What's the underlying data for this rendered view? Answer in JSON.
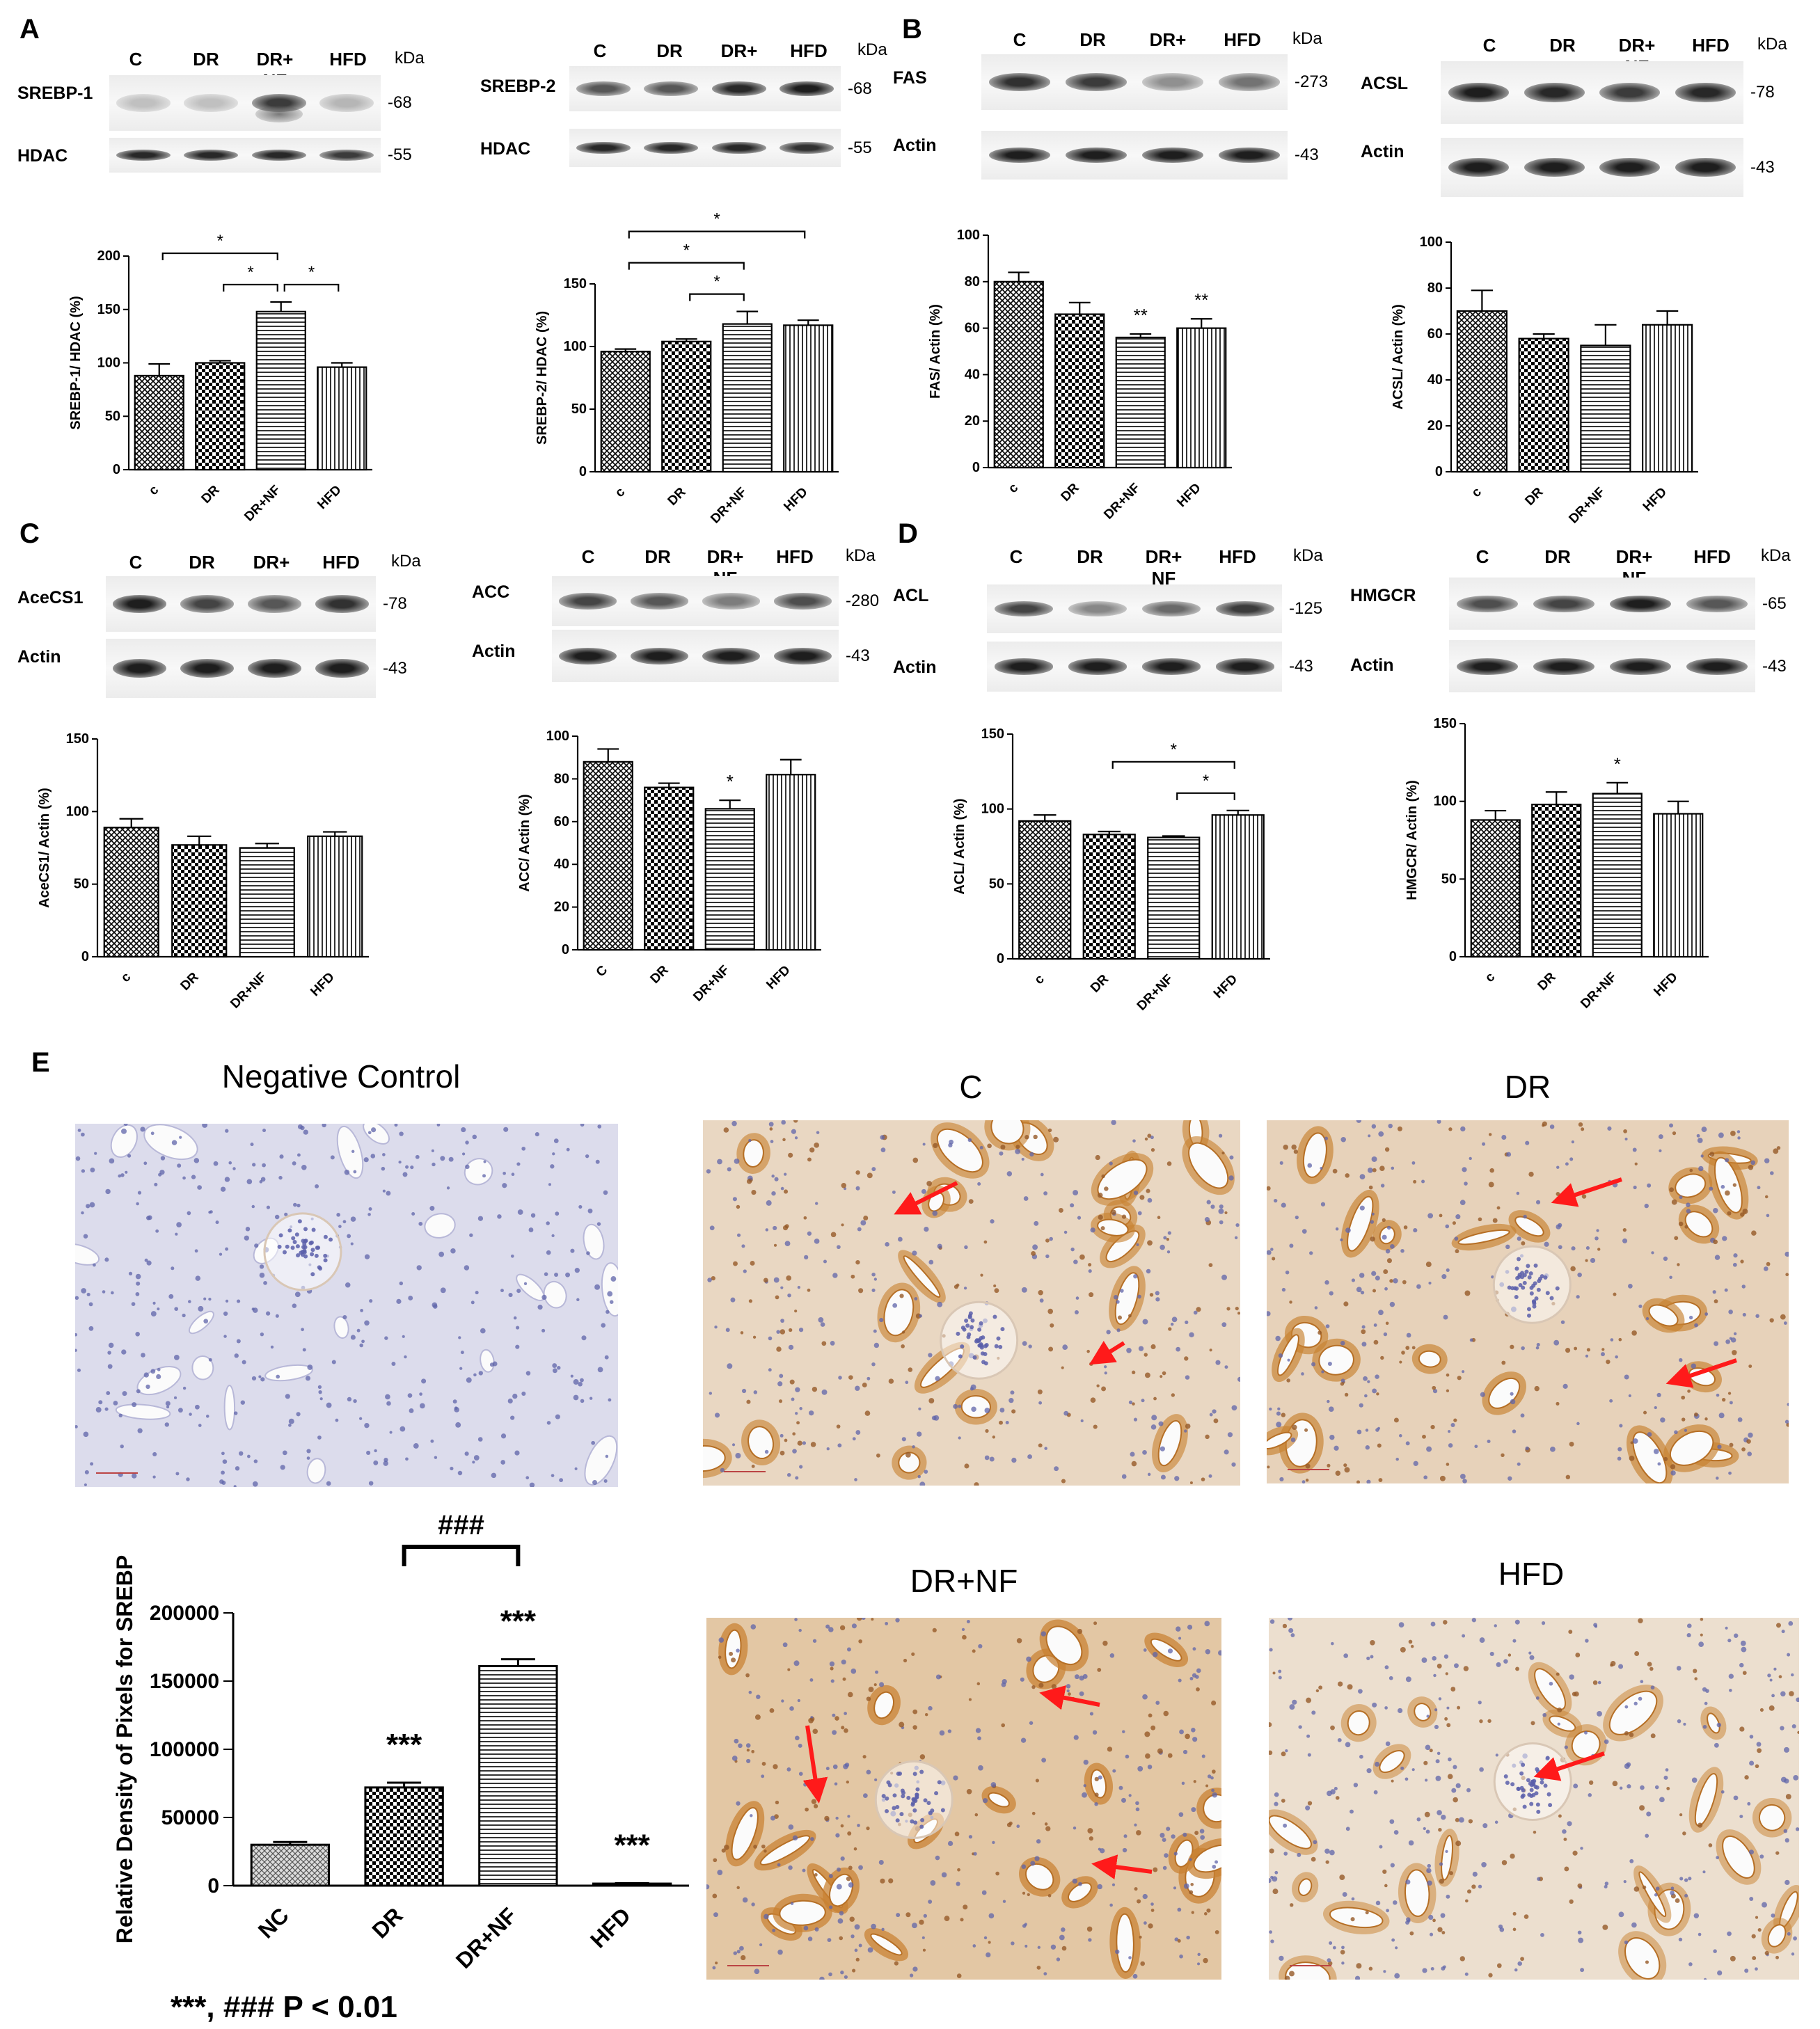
{
  "lanes": [
    "C",
    "DR",
    "DR+ NF",
    "HFD"
  ],
  "kda": "kDa",
  "panels": {
    "A": {
      "label": "A",
      "blot1": {
        "protein": "SREBP-1",
        "mw": "-68",
        "loading": "HDAC",
        "loading_mw": "-55"
      },
      "blot2": {
        "protein": "SREBP-2",
        "mw": "-68",
        "loading": "HDAC",
        "loading_mw": "-55"
      }
    },
    "B": {
      "label": "B",
      "blot1": {
        "protein": "FAS",
        "mw": "-273",
        "loading": "Actin",
        "loading_mw": "-43"
      },
      "blot2": {
        "protein": "ACSL",
        "mw": "-78",
        "loading": "Actin",
        "loading_mw": "-43"
      }
    },
    "C": {
      "label": "C",
      "blot1": {
        "protein": "AceCS1",
        "mw": "-78",
        "loading": "Actin",
        "loading_mw": "-43"
      },
      "blot2": {
        "protein": "ACC",
        "mw": "-280",
        "loading": "Actin",
        "loading_mw": "-43"
      }
    },
    "D": {
      "label": "D",
      "blot1": {
        "protein": "ACL",
        "mw": "-125",
        "loading": "Actin",
        "loading_mw": "-43"
      },
      "blot2": {
        "protein": "HMGCR",
        "mw": "-65",
        "loading": "Actin",
        "loading_mw": "-43"
      }
    },
    "E": {
      "label": "E",
      "micro_titles": [
        "Negative Control",
        "C",
        "DR",
        "DR+NF",
        "HFD"
      ],
      "pvalue": "***, ### P < 0.01"
    }
  },
  "colors": {
    "stain_brown": "#c8863a",
    "hematoxylin": "#8c8fc8",
    "arrow": "#ff1a1a"
  },
  "chart_data": [
    {
      "id": "srebp1",
      "type": "bar",
      "categories": [
        "c",
        "DR",
        "DR+NF",
        "HFD"
      ],
      "values": [
        88,
        100,
        148,
        96
      ],
      "errors": [
        11,
        2,
        9,
        4
      ],
      "ylabel": "SREBP-1/ HDAC (%)",
      "ylim": [
        0,
        200
      ],
      "yticks": [
        0,
        50,
        100,
        150,
        200
      ],
      "brackets": [
        {
          "from": 0,
          "to": 2,
          "label": "*"
        },
        {
          "from": 1,
          "to": 2,
          "label": "*"
        },
        {
          "from": 2,
          "to": 3,
          "label": "*"
        }
      ],
      "annotations": []
    },
    {
      "id": "srebp2",
      "type": "bar",
      "categories": [
        "c",
        "DR",
        "DR+NF",
        "HFD"
      ],
      "values": [
        96,
        104,
        118,
        117
      ],
      "errors": [
        2,
        2,
        10,
        4
      ],
      "ylabel": "SREBP-2/ HDAC (%)",
      "ylim": [
        0,
        150
      ],
      "yticks": [
        0,
        50,
        100,
        150
      ],
      "brackets": [
        {
          "from": 0,
          "to": 3,
          "label": "*"
        },
        {
          "from": 0,
          "to": 2,
          "label": "*"
        },
        {
          "from": 1,
          "to": 2,
          "label": "*"
        }
      ],
      "annotations": []
    },
    {
      "id": "fas",
      "type": "bar",
      "categories": [
        "c",
        "DR",
        "DR+NF",
        "HFD"
      ],
      "values": [
        80,
        66,
        56,
        60
      ],
      "errors": [
        4,
        5,
        1.5,
        4
      ],
      "ylabel": "FAS/ Actin (%)",
      "ylim": [
        0,
        100
      ],
      "yticks": [
        0,
        20,
        40,
        60,
        80,
        100
      ],
      "brackets": [],
      "annotations": [
        {
          "index": 2,
          "label": "**"
        },
        {
          "index": 3,
          "label": "**"
        }
      ]
    },
    {
      "id": "acsl",
      "type": "bar",
      "categories": [
        "c",
        "DR",
        "DR+NF",
        "HFD"
      ],
      "values": [
        70,
        58,
        55,
        64
      ],
      "errors": [
        9,
        2,
        9,
        6
      ],
      "ylabel": "ACSL/ Actin (%)",
      "ylim": [
        0,
        100
      ],
      "yticks": [
        0,
        20,
        40,
        60,
        80,
        100
      ],
      "brackets": [],
      "annotations": []
    },
    {
      "id": "acecs1",
      "type": "bar",
      "categories": [
        "c",
        "DR",
        "DR+NF",
        "HFD"
      ],
      "values": [
        89,
        77,
        75,
        83
      ],
      "errors": [
        6,
        6,
        3,
        3
      ],
      "ylabel": "AceCS1/ Actin (%)",
      "ylim": [
        0,
        150
      ],
      "yticks": [
        0,
        50,
        100,
        150
      ],
      "brackets": [],
      "annotations": []
    },
    {
      "id": "acc",
      "type": "bar",
      "categories": [
        "C",
        "DR",
        "DR+NF",
        "HFD"
      ],
      "values": [
        88,
        76,
        66,
        82
      ],
      "errors": [
        6,
        2,
        4,
        7
      ],
      "ylabel": "ACC/ Actin (%)",
      "ylim": [
        0,
        100
      ],
      "yticks": [
        0,
        20,
        40,
        60,
        80,
        100
      ],
      "brackets": [],
      "annotations": [
        {
          "index": 2,
          "label": "*"
        }
      ]
    },
    {
      "id": "acl",
      "type": "bar",
      "categories": [
        "c",
        "DR",
        "DR+NF",
        "HFD"
      ],
      "values": [
        92,
        83,
        81,
        96
      ],
      "errors": [
        4,
        2,
        1,
        3
      ],
      "ylabel": "ACL/ Actin (%)",
      "ylim": [
        0,
        150
      ],
      "yticks": [
        0,
        50,
        100,
        150
      ],
      "brackets": [
        {
          "from": 1,
          "to": 3,
          "label": "*"
        },
        {
          "from": 2,
          "to": 3,
          "label": "*"
        }
      ],
      "annotations": []
    },
    {
      "id": "hmgcr",
      "type": "bar",
      "categories": [
        "c",
        "DR",
        "DR+NF",
        "HFD"
      ],
      "values": [
        88,
        98,
        105,
        92
      ],
      "errors": [
        6,
        8,
        7,
        8
      ],
      "ylabel": "HMGCR/ Actin (%)",
      "ylim": [
        0,
        150
      ],
      "yticks": [
        0,
        50,
        100,
        150
      ],
      "brackets": [],
      "annotations": [
        {
          "index": 2,
          "label": "*"
        }
      ]
    },
    {
      "id": "srebp_density",
      "type": "bar",
      "categories": [
        "NC",
        "DR",
        "DR+NF",
        "HFD"
      ],
      "values": [
        30000,
        72000,
        161000,
        1500
      ],
      "errors": [
        2000,
        3500,
        5000,
        300
      ],
      "ylabel": "Relative Density of Pixels for SREBP",
      "ylim": [
        0,
        200000
      ],
      "yticks": [
        0,
        50000,
        100000,
        150000,
        200000
      ],
      "brackets": [
        {
          "from": 1,
          "to": 2,
          "label": "###"
        }
      ],
      "annotations": [
        {
          "index": 1,
          "label": "***"
        },
        {
          "index": 2,
          "label": "***"
        },
        {
          "index": 3,
          "label": "***"
        }
      ]
    }
  ]
}
